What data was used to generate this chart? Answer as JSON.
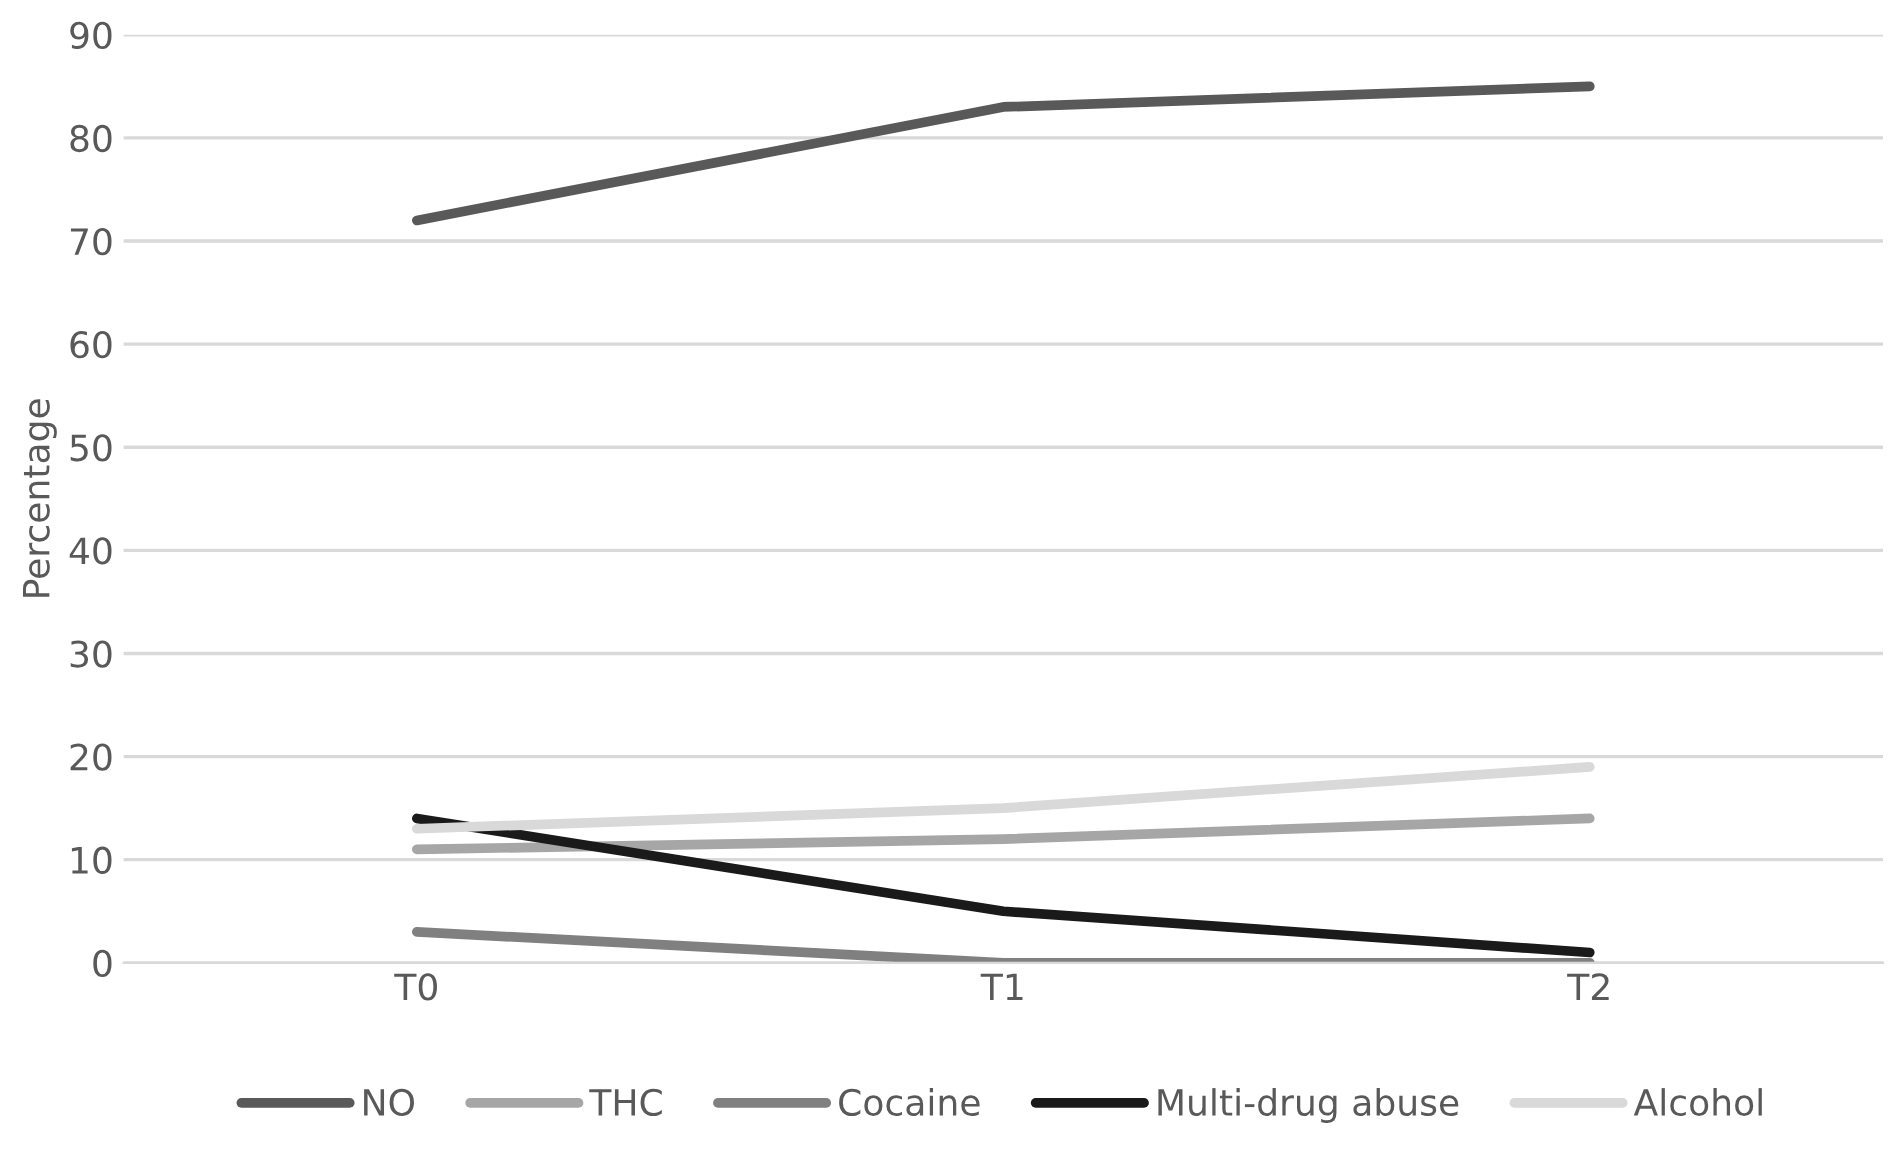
{
  "chart_data": {
    "type": "line",
    "ylabel": "Percentage",
    "categories": [
      "T0",
      "T1",
      "T2"
    ],
    "series": [
      {
        "name": "NO",
        "color": "#595959",
        "values": [
          72,
          83,
          85
        ]
      },
      {
        "name": "THC",
        "color": "#a6a6a6",
        "values": [
          11,
          12,
          14
        ]
      },
      {
        "name": "Cocaine",
        "color": "#808080",
        "values": [
          3,
          0,
          0
        ]
      },
      {
        "name": "Multi-drug abuse",
        "color": "#1a1a1a",
        "values": [
          14,
          5,
          1
        ]
      },
      {
        "name": "Alcohol",
        "color": "#d9d9d9",
        "values": [
          13,
          15,
          19
        ]
      }
    ],
    "ylim": [
      0,
      90
    ],
    "yticks": [
      0,
      10,
      20,
      30,
      40,
      50,
      60,
      70,
      80,
      90
    ],
    "grid": "y",
    "legend": "bottom",
    "line_style": "solid",
    "marker": "none"
  }
}
